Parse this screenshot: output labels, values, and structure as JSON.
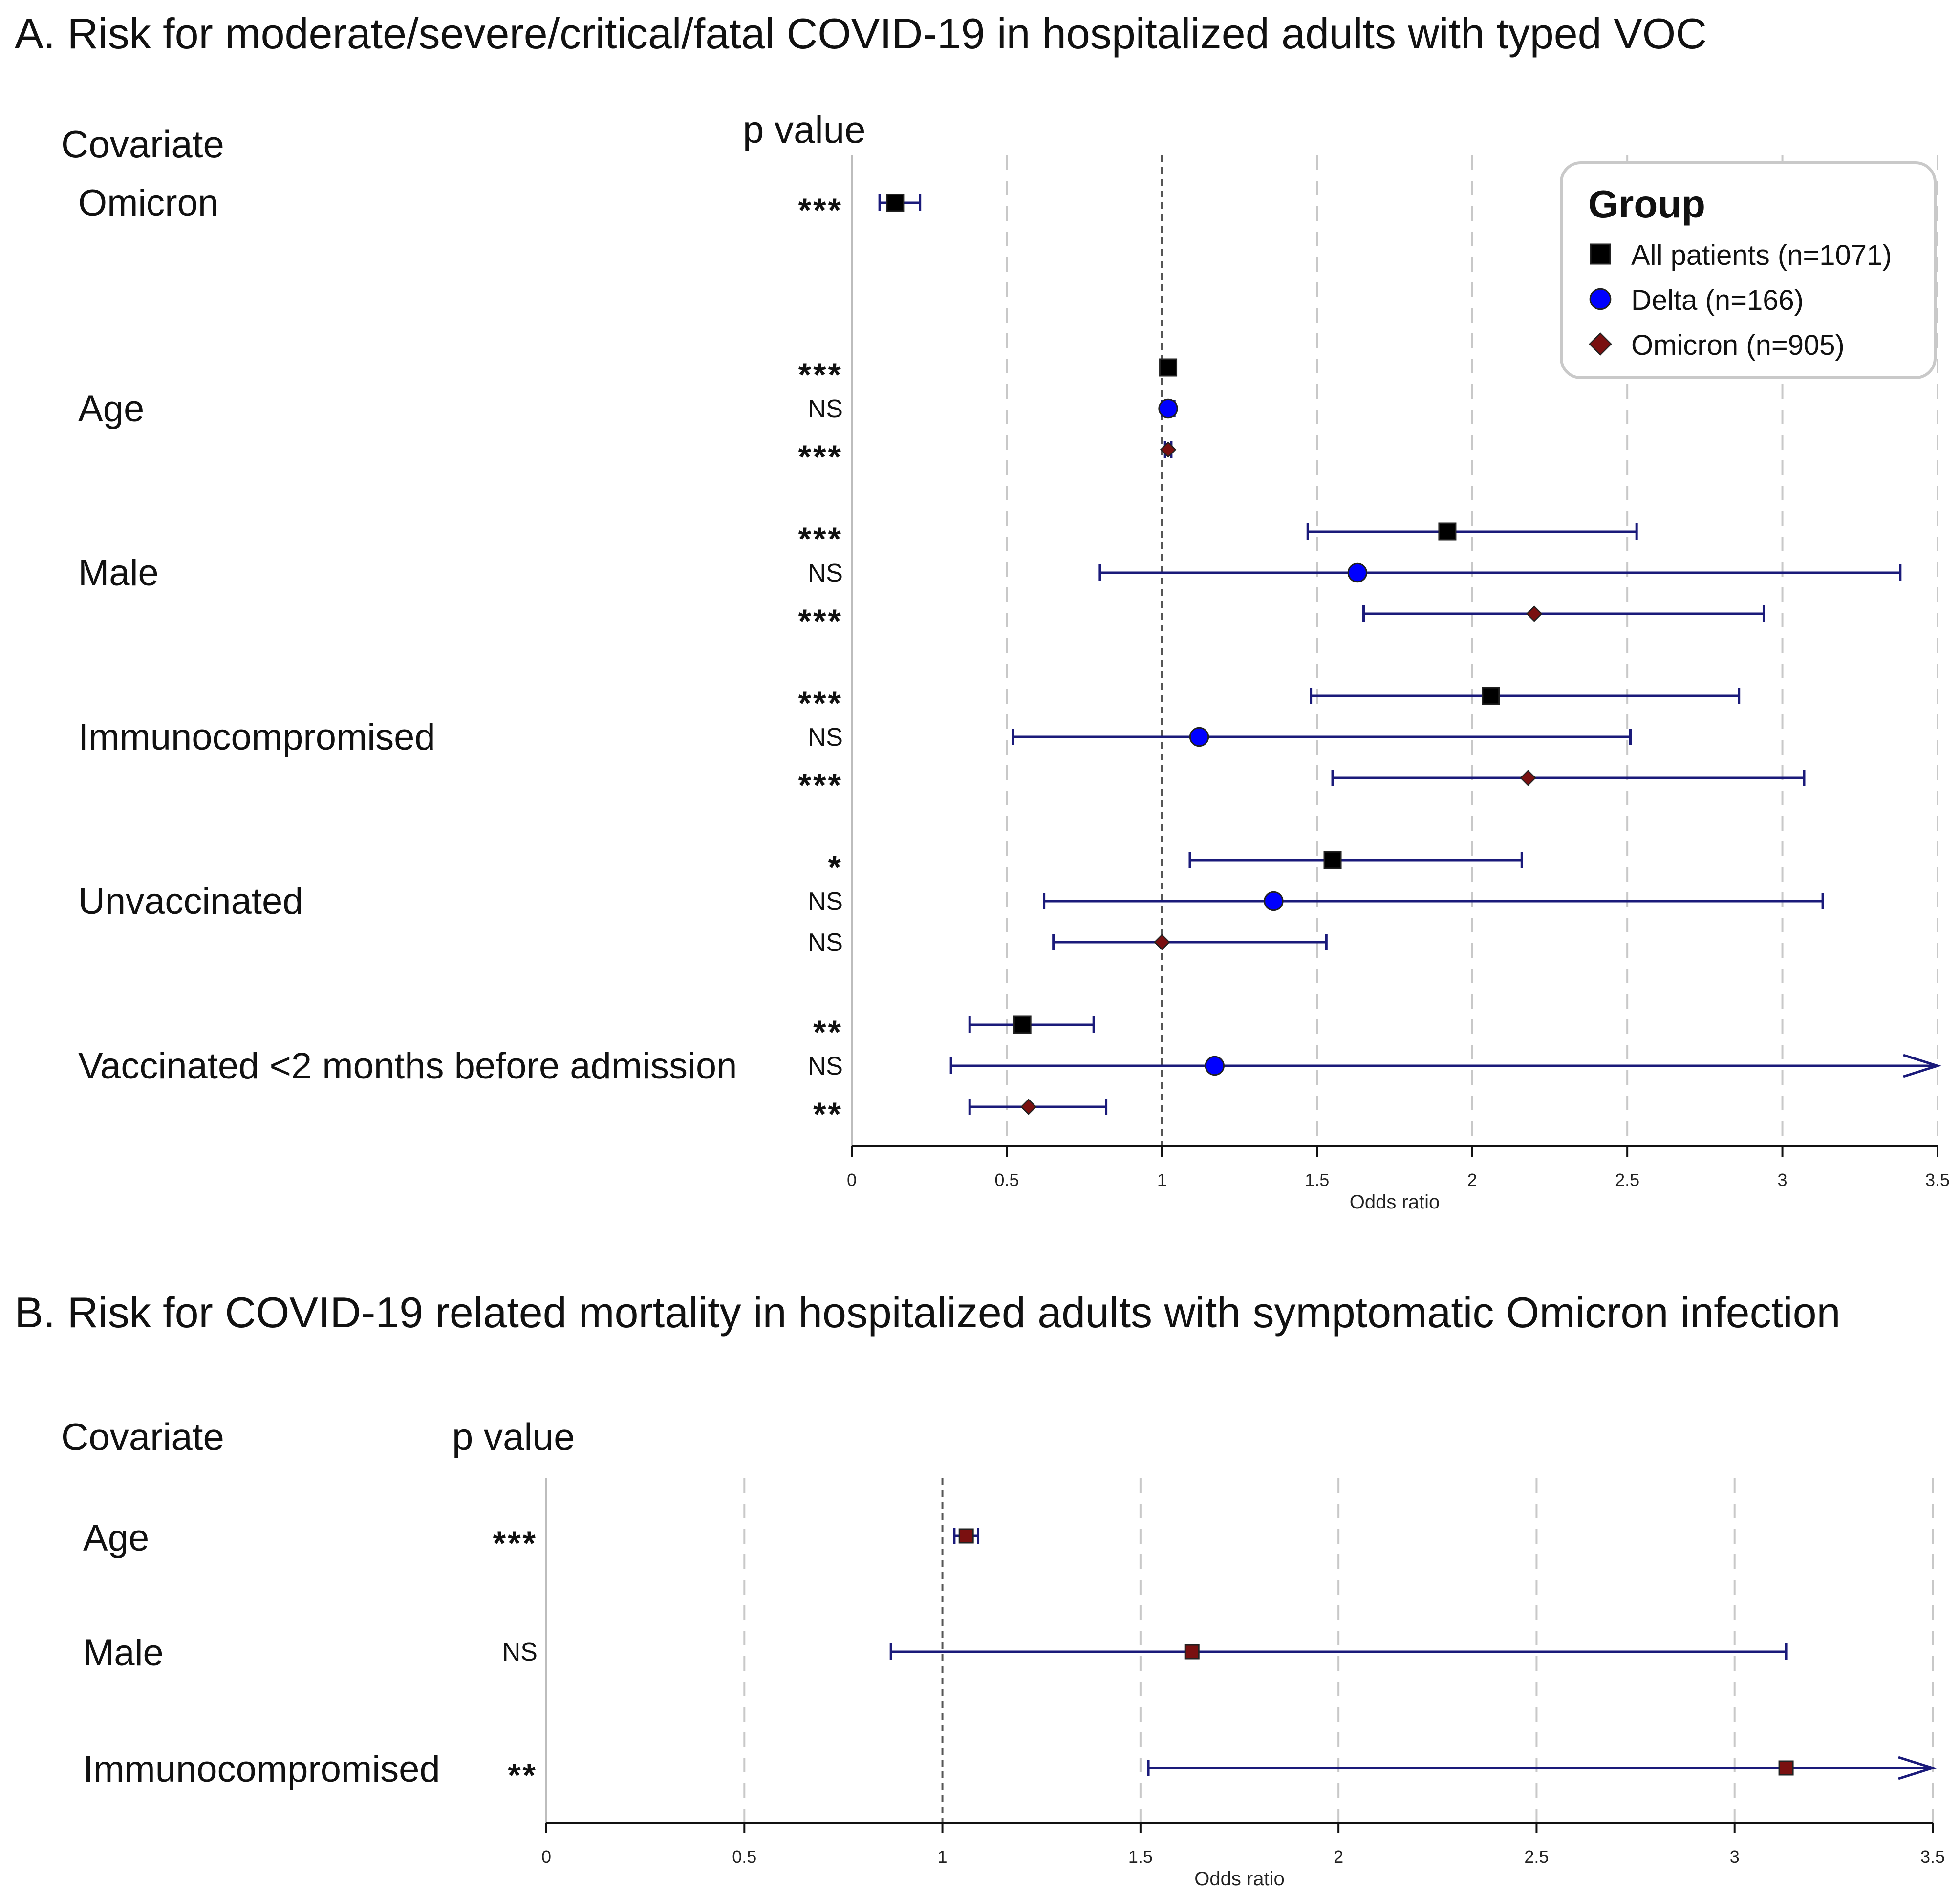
{
  "chart_data": [
    {
      "type": "forest",
      "panel": "A",
      "title": "A. Risk for moderate/severe/critical/fatal COVID-19 in hospitalized adults with typed VOC",
      "covariate_header": "Covariate",
      "pvalue_header": "p value",
      "xlabel": "Odds ratio",
      "xlim": [
        0,
        3.5
      ],
      "xticks": [
        "0",
        "0.5",
        "1",
        "1.5",
        "2",
        "2.5",
        "3",
        "3.5"
      ],
      "reference_line": 1,
      "legend": {
        "title": "Group",
        "position": "top-right",
        "entries": [
          {
            "label": "All patients (n=1071)",
            "marker": "square",
            "color": "#000000"
          },
          {
            "label": "Delta (n=166)",
            "marker": "circle",
            "color": "#0000ff"
          },
          {
            "label": "Omicron (n=905)",
            "marker": "diamond",
            "color": "#7a1010"
          }
        ]
      },
      "colors": {
        "ci": "#1a1a7a",
        "grid": "#c8c8c8",
        "ref": "#555555"
      },
      "covariates": [
        {
          "label": "Omicron",
          "rows": [
            {
              "group": "All patients",
              "or": 0.14,
              "lo": 0.09,
              "hi": 0.22,
              "p": "***"
            }
          ]
        },
        {
          "label": "Age",
          "rows": [
            {
              "group": "All patients",
              "or": 1.02,
              "lo": 1.01,
              "hi": 1.03,
              "p": "***"
            },
            {
              "group": "Delta",
              "or": 1.02,
              "lo": 1.0,
              "hi": 1.04,
              "p": "NS"
            },
            {
              "group": "Omicron",
              "or": 1.02,
              "lo": 1.01,
              "hi": 1.03,
              "p": "***"
            }
          ]
        },
        {
          "label": "Male",
          "rows": [
            {
              "group": "All patients",
              "or": 1.92,
              "lo": 1.47,
              "hi": 2.53,
              "p": "***"
            },
            {
              "group": "Delta",
              "or": 1.63,
              "lo": 0.8,
              "hi": 3.38,
              "p": "NS"
            },
            {
              "group": "Omicron",
              "or": 2.2,
              "lo": 1.65,
              "hi": 2.94,
              "p": "***"
            }
          ]
        },
        {
          "label": "Immunocompromised",
          "rows": [
            {
              "group": "All patients",
              "or": 2.06,
              "lo": 1.48,
              "hi": 2.86,
              "p": "***"
            },
            {
              "group": "Delta",
              "or": 1.12,
              "lo": 0.52,
              "hi": 2.51,
              "p": "NS"
            },
            {
              "group": "Omicron",
              "or": 2.18,
              "lo": 1.55,
              "hi": 3.07,
              "p": "***"
            }
          ]
        },
        {
          "label": "Unvaccinated",
          "rows": [
            {
              "group": "All patients",
              "or": 1.55,
              "lo": 1.09,
              "hi": 2.16,
              "p": "*"
            },
            {
              "group": "Delta",
              "or": 1.36,
              "lo": 0.62,
              "hi": 3.13,
              "p": "NS"
            },
            {
              "group": "Omicron",
              "or": 1.0,
              "lo": 0.65,
              "hi": 1.53,
              "p": "NS"
            }
          ]
        },
        {
          "label": "Vaccinated <2 months before admission",
          "rows": [
            {
              "group": "All patients",
              "or": 0.55,
              "lo": 0.38,
              "hi": 0.78,
              "p": "**"
            },
            {
              "group": "Delta",
              "or": 1.17,
              "lo": 0.32,
              "hi": 3.5,
              "p": "NS",
              "arrow": true
            },
            {
              "group": "Omicron",
              "or": 0.57,
              "lo": 0.38,
              "hi": 0.82,
              "p": "**"
            }
          ]
        }
      ]
    },
    {
      "type": "forest",
      "panel": "B",
      "title": "B. Risk for COVID-19 related mortality in hospitalized adults with symptomatic Omicron infection",
      "covariate_header": "Covariate",
      "pvalue_header": "p value",
      "xlabel": "Odds ratio",
      "xlim": [
        0,
        3.5
      ],
      "xticks": [
        "0",
        "0.5",
        "1",
        "1.5",
        "2",
        "2.5",
        "3",
        "3.5"
      ],
      "reference_line": 1,
      "colors": {
        "ci": "#1a1a7a",
        "grid": "#c8c8c8",
        "ref": "#555555",
        "marker": "#7a1010"
      },
      "covariates": [
        {
          "label": "Age",
          "rows": [
            {
              "group": "Omicron",
              "or": 1.06,
              "lo": 1.03,
              "hi": 1.09,
              "p": "***"
            }
          ]
        },
        {
          "label": "Male",
          "rows": [
            {
              "group": "Omicron",
              "or": 1.63,
              "lo": 0.87,
              "hi": 3.13,
              "p": "NS"
            }
          ]
        },
        {
          "label": "Immunocompromised",
          "rows": [
            {
              "group": "Omicron",
              "or": 3.13,
              "lo": 1.52,
              "hi": 3.5,
              "p": "**",
              "arrow": true
            }
          ]
        }
      ]
    }
  ]
}
